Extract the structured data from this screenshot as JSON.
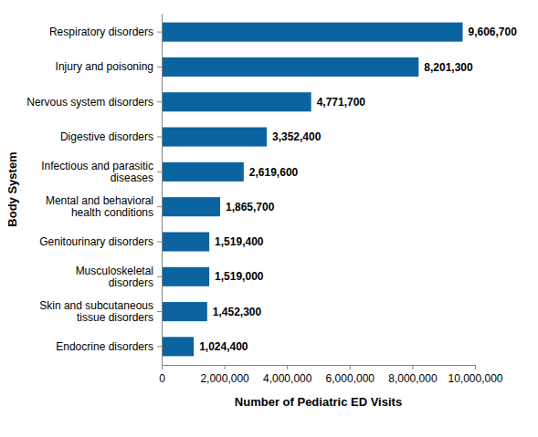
{
  "chart_data": {
    "type": "bar",
    "orientation": "horizontal",
    "categories": [
      "Respiratory disorders",
      "Injury and poisoning",
      "Nervous system disorders",
      "Digestive disorders",
      "Infectious and parasitic diseases",
      "Mental and behavioral health conditions",
      "Genitourinary disorders",
      "Musculoskeletal disorders",
      "Skin and subcutaneous tissue disorders",
      "Endocrine disorders"
    ],
    "values": [
      9606700,
      8201300,
      4771700,
      3352400,
      2619600,
      1865700,
      1519400,
      1519000,
      1452300,
      1024400
    ],
    "value_labels": [
      "9,606,700",
      "8,201,300",
      "4,771,700",
      "3,352,400",
      "2,619,600",
      "1,865,700",
      "1,519,400",
      "1,519,000",
      "1,452,300",
      "1,024,400"
    ],
    "data_labels": true,
    "color": "#0b64a0",
    "xlabel": "Number of Pediatric ED Visits",
    "ylabel": "Body System",
    "xlim": [
      0,
      10000000
    ],
    "xticks": [
      0,
      {
        "value": 2000000,
        "label": "2,000,000"
      },
      {
        "value": 4000000,
        "label": "4,000,000"
      },
      {
        "value": 6000000,
        "label": "6,000,000"
      },
      {
        "value": 8000000,
        "label": "8,000,000"
      },
      {
        "value": 10000000,
        "label": "10,000,000"
      }
    ],
    "grid": false
  }
}
